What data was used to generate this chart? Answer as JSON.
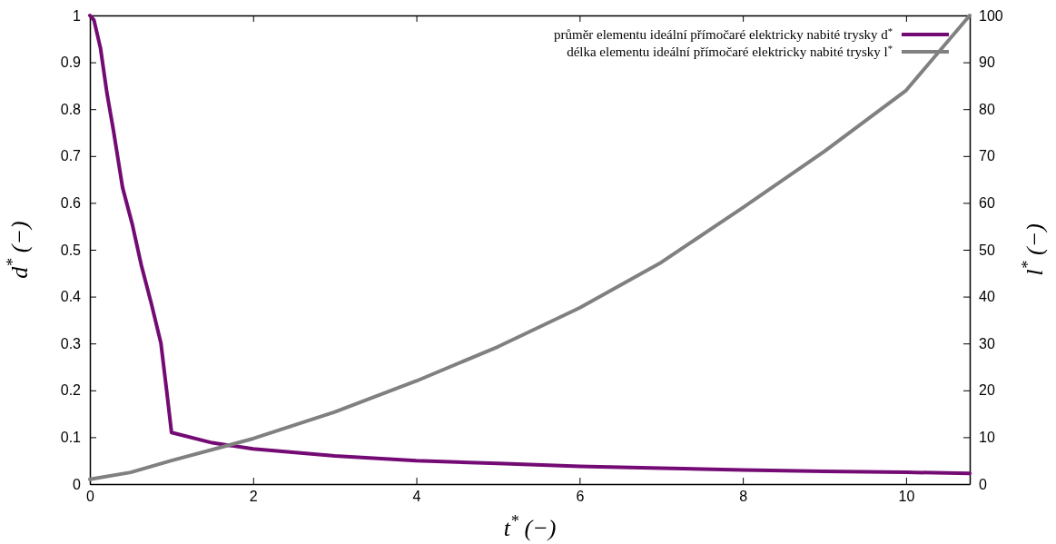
{
  "chart_data": {
    "type": "line",
    "xlabel": "t$^{*}$ (−)",
    "ylabel": "d$^{*}$ (−)",
    "y2label": "l$^{*}$ (−)",
    "xlim": [
      0,
      10.78
    ],
    "xticks": [
      0,
      2,
      4,
      6,
      8,
      10
    ],
    "ylim": [
      0,
      1
    ],
    "yticks": [
      0,
      0.1,
      0.2,
      0.3,
      0.4,
      0.5,
      0.6,
      0.7,
      0.8,
      0.9,
      1
    ],
    "y2lim": [
      0,
      100
    ],
    "y2ticks": [
      0,
      10,
      20,
      30,
      40,
      50,
      60,
      70,
      80,
      90,
      100
    ],
    "legend": "top right",
    "grid": false,
    "line_style": "solid",
    "marker": "none",
    "series": [
      {
        "name": "průměr elementu ideální přímočaré elektricky nabité trysky d$^{*}$",
        "color": "#740b74",
        "x": [
          0,
          0.05,
          0.13,
          0.21,
          0.29,
          0.4,
          0.52,
          0.63,
          0.75,
          0.87,
          0.94,
          1.0,
          1.5,
          2,
          3,
          4,
          5,
          6,
          7,
          8,
          9,
          10,
          10.78
        ],
        "values": [
          1,
          0.99,
          0.93,
          0.833,
          0.753,
          0.633,
          0.554,
          0.467,
          0.387,
          0.301,
          0.2,
          0.11,
          0.088,
          0.075,
          0.06,
          0.05,
          0.044,
          0.038,
          0.034,
          0.03,
          0.027,
          0.025,
          0.023
        ]
      },
      {
        "name": "délka elementu ideální přímočaré elektricky nabité trysky l$^{*}$",
        "color": "#808080",
        "axis": "y2",
        "x": [
          0,
          0.5,
          1,
          2,
          3,
          4,
          5,
          6,
          7,
          8,
          9,
          10,
          10.78
        ],
        "values": [
          1,
          2.5,
          5,
          9.7,
          15.4,
          22,
          29.3,
          37.6,
          47.3,
          59,
          71,
          84,
          100
        ]
      }
    ]
  }
}
